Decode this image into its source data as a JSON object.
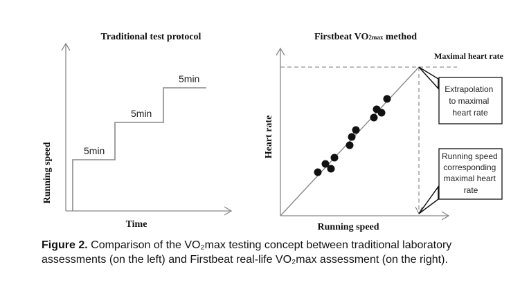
{
  "left_panel": {
    "title": "Traditional test protocol",
    "y_label": "Running speed",
    "x_label": "Time",
    "steps": [
      "5min",
      "5min",
      "5min"
    ]
  },
  "right_panel": {
    "title_main": "Firstbeat VO",
    "title_sub": "2max",
    "title_tail": " method",
    "y_label": "Heart rate",
    "x_label": "Running speed",
    "max_hr_label": "Maximal heart rate",
    "callout_1": [
      "Extrapolation",
      "to maximal",
      "heart rate"
    ],
    "callout_2": [
      "Running speed",
      "corresponding",
      "maximal heart",
      "rate"
    ]
  },
  "caption": {
    "label": "Figure 2.",
    "line1": " Comparison of the VO₂max testing concept between traditional laboratory",
    "line2": "assessments (on the left) and Firstbeat real-life VO₂max assessment (on the right)."
  }
}
